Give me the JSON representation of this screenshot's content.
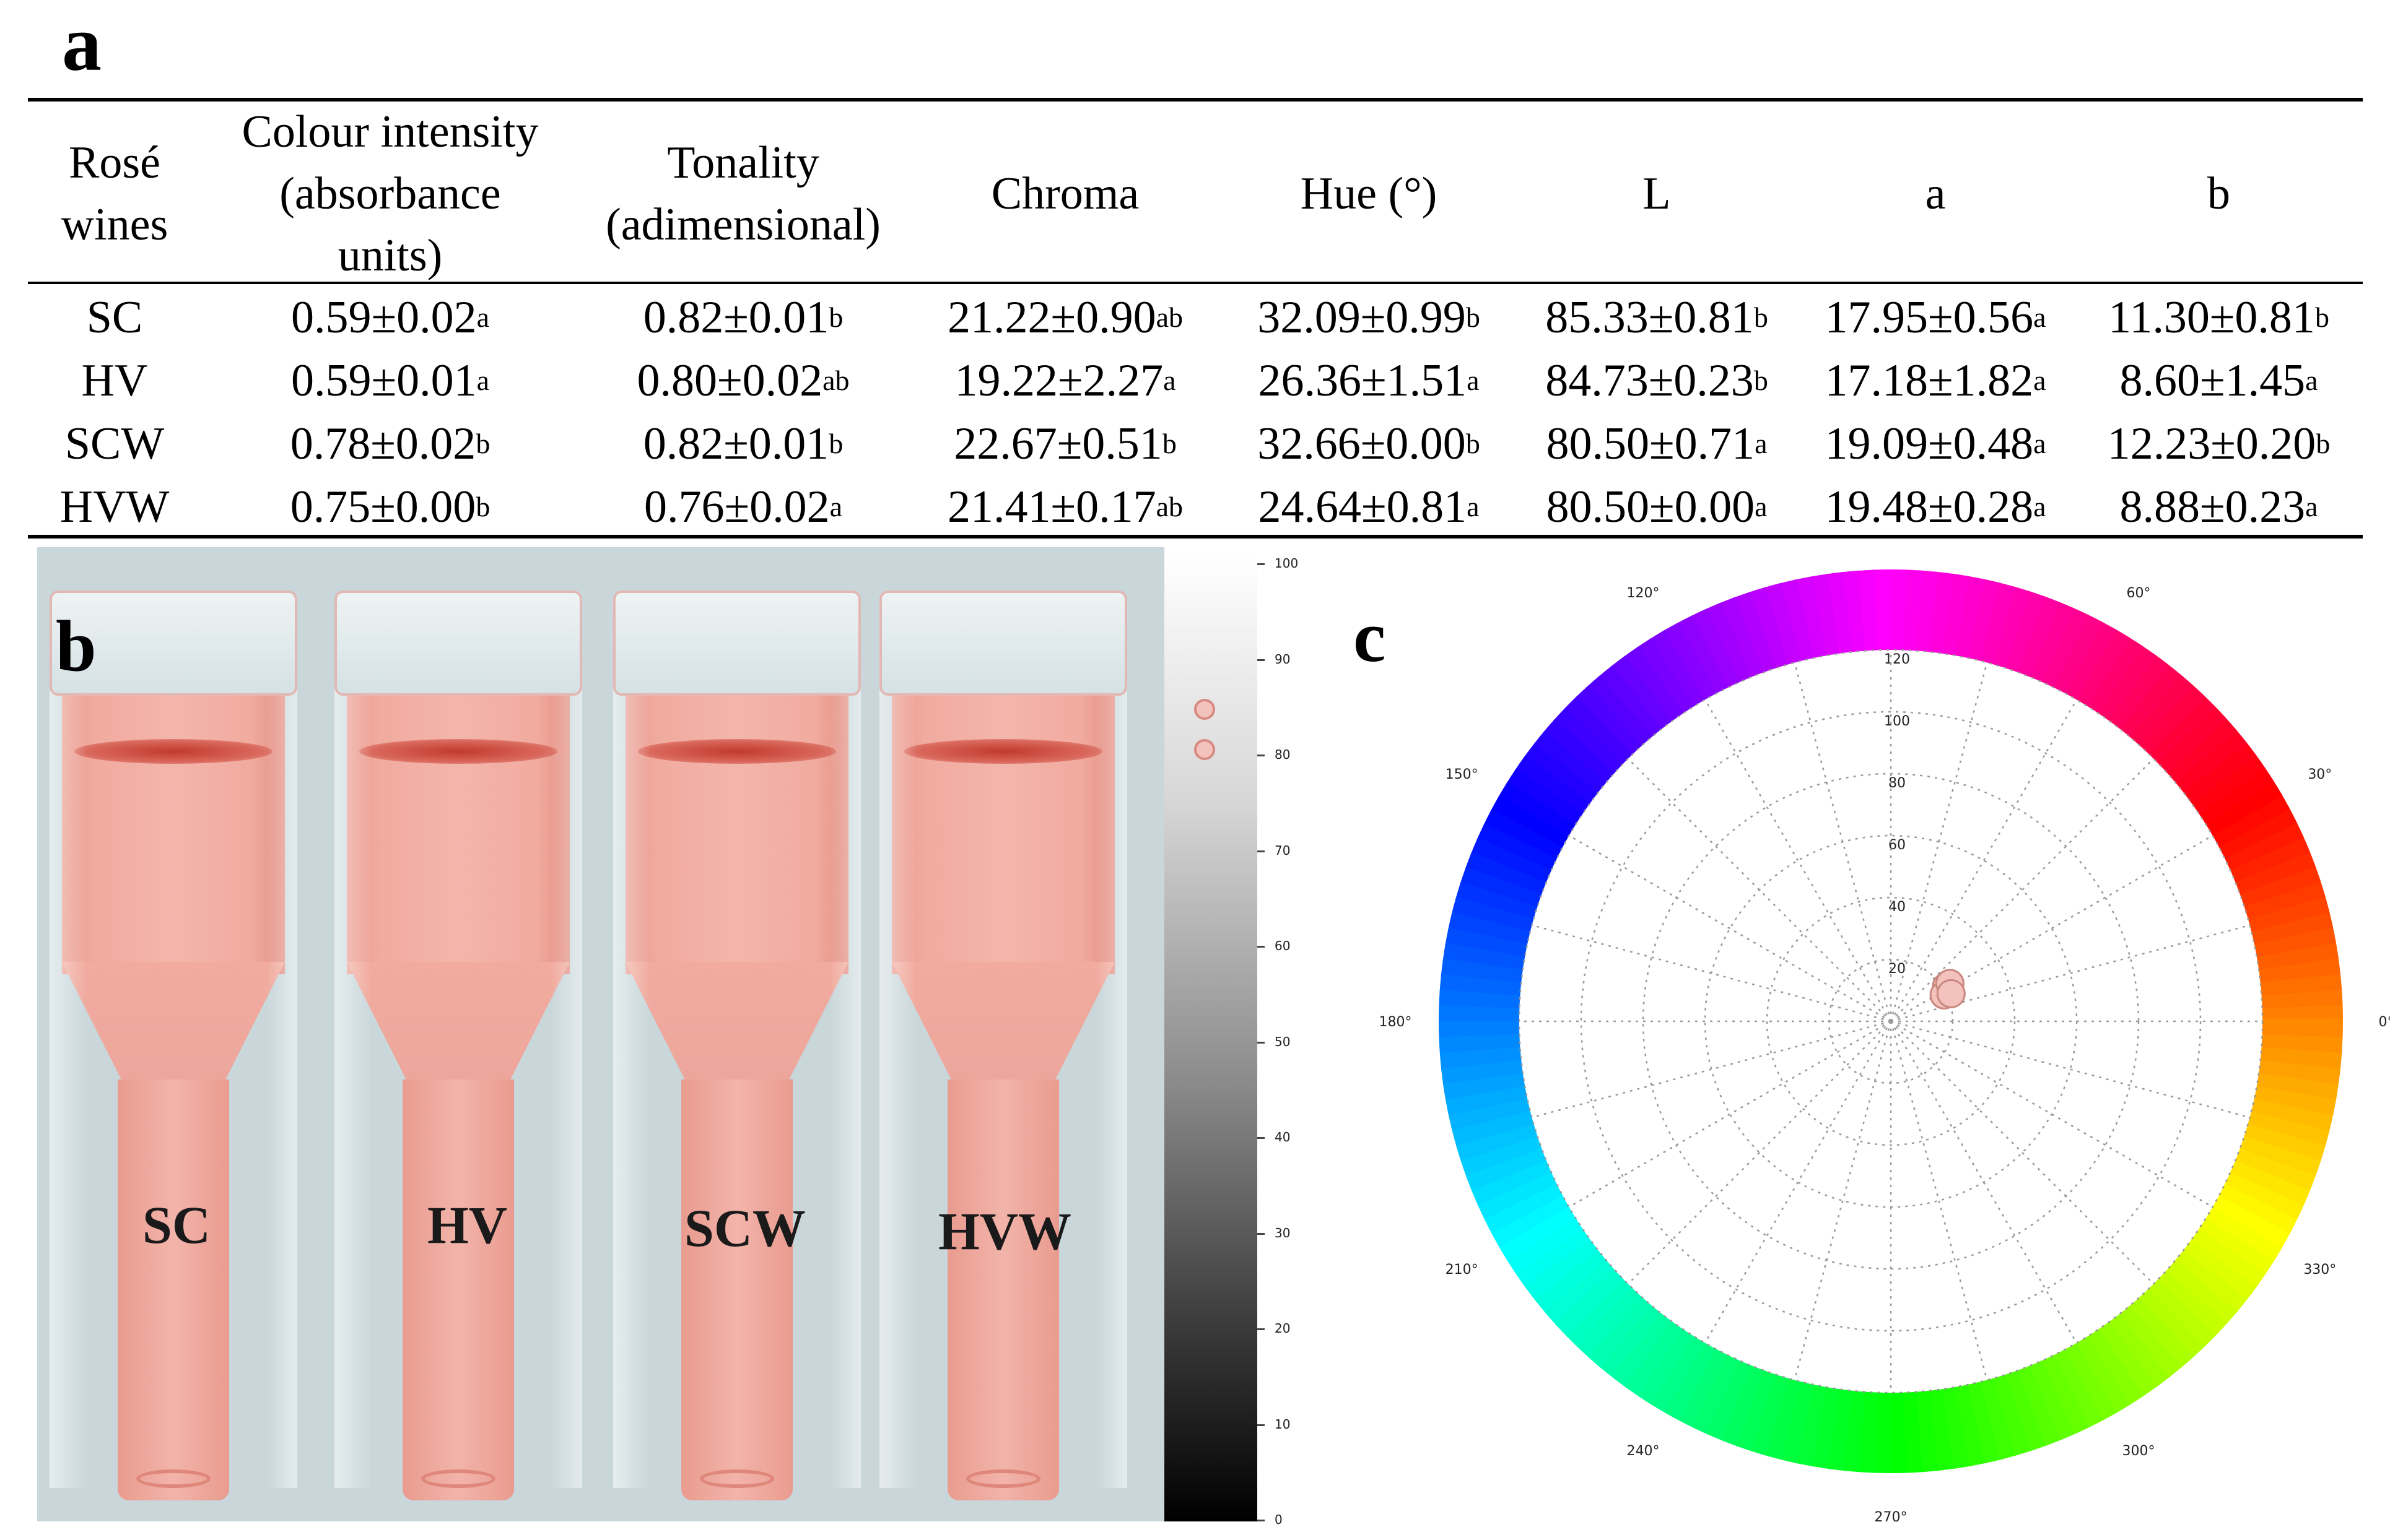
{
  "panel_labels": {
    "a": "a",
    "b": "b",
    "c": "c"
  },
  "table": {
    "headers": [
      [
        "Rosé",
        "wines"
      ],
      [
        "Colour intensity",
        "(absorbance",
        "units)"
      ],
      [
        "Tonality",
        "(adimensional)"
      ],
      [
        "Chroma"
      ],
      [
        "Hue (°)"
      ],
      [
        "L"
      ],
      [
        "a"
      ],
      [
        "b"
      ]
    ],
    "rows": [
      {
        "wine": "SC",
        "cells": [
          [
            "0.59±0.02",
            "a"
          ],
          [
            "0.82±0.01",
            "b"
          ],
          [
            "21.22±0.90",
            "ab"
          ],
          [
            "32.09±0.99",
            "b"
          ],
          [
            "85.33±0.81",
            "b"
          ],
          [
            "17.95±0.56",
            "a"
          ],
          [
            "11.30±0.81",
            "b"
          ]
        ]
      },
      {
        "wine": "HV",
        "cells": [
          [
            "0.59±0.01",
            "a"
          ],
          [
            "0.80±0.02",
            "ab"
          ],
          [
            "19.22±2.27",
            "a"
          ],
          [
            "26.36±1.51",
            "a"
          ],
          [
            "84.73±0.23",
            "b"
          ],
          [
            "17.18±1.82",
            "a"
          ],
          [
            "8.60±1.45",
            "a"
          ]
        ]
      },
      {
        "wine": "SCW",
        "cells": [
          [
            "0.78±0.02",
            "b"
          ],
          [
            "0.82±0.01",
            "b"
          ],
          [
            "22.67±0.51",
            "b"
          ],
          [
            "32.66±0.00",
            "b"
          ],
          [
            "80.50±0.71",
            "a"
          ],
          [
            "19.09±0.48",
            "a"
          ],
          [
            "12.23±0.20",
            "b"
          ]
        ]
      },
      {
        "wine": "HVW",
        "cells": [
          [
            "0.75±0.00",
            "b"
          ],
          [
            "0.76±0.02",
            "a"
          ],
          [
            "21.41±0.17",
            "ab"
          ],
          [
            "24.64±0.81",
            "a"
          ],
          [
            "80.50±0.00",
            "a"
          ],
          [
            "19.48±0.28",
            "a"
          ],
          [
            "8.88±0.23",
            "a"
          ]
        ]
      }
    ]
  },
  "photo": {
    "samples": [
      "SC",
      "HV",
      "SCW",
      "HVW"
    ],
    "grey_scale_ticks": [
      "100",
      "90",
      "80",
      "70",
      "60",
      "50",
      "40",
      "30",
      "20",
      "10",
      "0"
    ],
    "lightness_markers": [
      84.73,
      80.5
    ],
    "wine_color": "#f2b0a6"
  },
  "chart_data": {
    "type": "scatter",
    "title": "",
    "coordinate_system": "polar (CIELab a*b* hue circle)",
    "radial_ticks": [
      "20",
      "40",
      "60",
      "80",
      "100",
      "120"
    ],
    "radial_range": [
      0,
      120
    ],
    "angle_labels": [
      "0°",
      "30°",
      "60°",
      "90°",
      "120°",
      "150°",
      "180°",
      "210°",
      "240°",
      "270°",
      "300°",
      "330°"
    ],
    "angle_labels_shown": [
      "0°",
      "30°",
      "60°",
      "120°",
      "150°",
      "180°",
      "210°",
      "240°",
      "270°",
      "300°",
      "330°"
    ],
    "series": [
      {
        "name": "rosé wines",
        "points": [
          {
            "label": "SC",
            "hue_deg": 32.09,
            "chroma": 21.22
          },
          {
            "label": "HV",
            "hue_deg": 26.36,
            "chroma": 19.22
          },
          {
            "label": "SCW",
            "hue_deg": 32.66,
            "chroma": 22.67
          },
          {
            "label": "HVW",
            "hue_deg": 24.64,
            "chroma": 21.41
          }
        ]
      }
    ],
    "point_fill": "#f3c2bd",
    "point_stroke": "#c98880"
  }
}
